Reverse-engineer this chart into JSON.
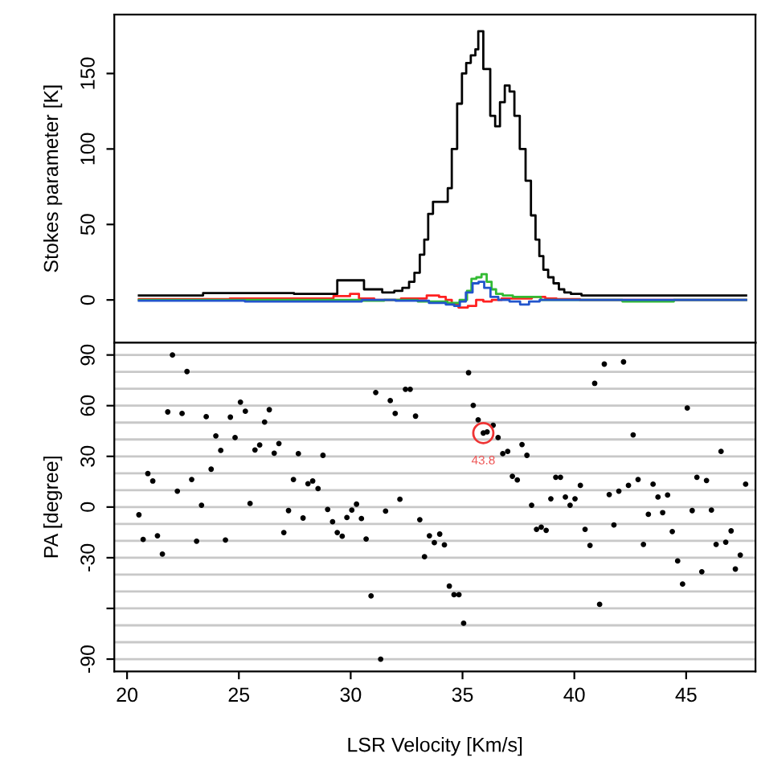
{
  "chart_data": [
    {
      "type": "step",
      "ylabel": "Stokes parameter [K]",
      "xlim": [
        19.43,
        48.1
      ],
      "ylim": [
        -28.3,
        189
      ],
      "yticks": [
        0,
        50,
        100,
        150
      ],
      "tick_labels": "y",
      "grid": false,
      "legend": false,
      "series": [
        {
          "color": "#000000",
          "x": [
            20.53,
            26.27,
            28.66,
            30.14,
            31.05,
            31.77,
            32.13,
            32.49,
            32.73,
            32.97,
            33.21,
            33.37,
            33.56,
            33.8,
            34.28,
            34.4,
            34.64,
            34.88,
            35.07,
            35.26,
            35.48,
            35.67,
            35.74,
            36.12,
            36.36,
            36.56,
            36.79,
            36.99,
            37.22,
            37.42,
            37.7,
            37.94,
            38.18,
            38.35,
            38.52,
            38.71,
            38.95,
            39.19,
            39.43,
            39.67,
            40.02,
            40.62,
            47.68
          ],
          "values": [
            3,
            4.5,
            4,
            13,
            7,
            5,
            6,
            8,
            12,
            18,
            30,
            40,
            57,
            65,
            65,
            74,
            100,
            130,
            150,
            157,
            162,
            166,
            178,
            153,
            122,
            115,
            131,
            142,
            138,
            122,
            100,
            79,
            56,
            40,
            29,
            20,
            15,
            11,
            7,
            5,
            4,
            3,
            3
          ]
        },
        {
          "color": "#ff2020",
          "x": [
            20.53,
            28.66,
            29.8,
            30.14,
            30.6,
            31.5,
            33.0,
            33.8,
            34.1,
            34.4,
            34.64,
            35.0,
            35.48,
            35.74,
            36.12,
            36.5,
            37.0,
            37.7,
            38.5,
            38.9,
            39.5,
            41.0,
            47.68
          ],
          "values": [
            0.5,
            1,
            2.5,
            4,
            1,
            0,
            1,
            3,
            2,
            0,
            -3,
            -5,
            -4,
            0,
            -1,
            0,
            1,
            1,
            2,
            1,
            0.5,
            0,
            0
          ]
        },
        {
          "color": "#33bb33",
          "x": [
            20.53,
            30.0,
            31.0,
            32.0,
            34.0,
            34.64,
            35.1,
            35.3,
            35.5,
            35.74,
            35.96,
            36.2,
            36.4,
            36.6,
            37.0,
            37.5,
            38.3,
            38.7,
            40.0,
            44.3,
            44.6,
            47.68
          ],
          "values": [
            0,
            0,
            -0.5,
            0,
            -1,
            -2,
            0,
            6,
            14,
            15,
            17,
            12,
            7,
            4,
            3,
            2,
            2,
            0,
            0,
            -1,
            0,
            0
          ]
        },
        {
          "color": "#2255cc",
          "x": [
            20.53,
            30.0,
            31.0,
            33.0,
            34.0,
            34.5,
            34.76,
            35.0,
            35.3,
            35.6,
            35.84,
            36.1,
            36.4,
            36.8,
            37.4,
            37.75,
            38.2,
            38.7,
            47.68
          ],
          "values": [
            -0.5,
            -1,
            0,
            -0.5,
            -2,
            -3,
            -4,
            -1,
            5,
            11,
            12,
            8,
            2,
            0,
            -1,
            -3,
            -1,
            0,
            0
          ]
        }
      ]
    },
    {
      "type": "scatter",
      "xlabel": "LSR Velocity [Km/s]",
      "ylabel": "PA [degree]",
      "xlim": [
        19.43,
        48.1
      ],
      "ylim": [
        -97.3,
        97.3
      ],
      "xticks": [
        20,
        25,
        30,
        35,
        40,
        45
      ],
      "yticks": [
        -90,
        {
          "value": -60,
          "label": null
        },
        -30,
        0,
        30,
        60,
        90
      ],
      "grid": false,
      "legend": false,
      "marker": "circle",
      "ref_lines": [
        {
          "axis": "y",
          "value": -90,
          "color": "#c8c8c8"
        },
        {
          "axis": "y",
          "value": -80,
          "color": "#c8c8c8"
        },
        {
          "axis": "y",
          "value": -70,
          "color": "#c8c8c8"
        },
        {
          "axis": "y",
          "value": -60,
          "color": "#c8c8c8"
        },
        {
          "axis": "y",
          "value": -50,
          "color": "#c8c8c8"
        },
        {
          "axis": "y",
          "value": -40,
          "color": "#c8c8c8"
        },
        {
          "axis": "y",
          "value": -30,
          "color": "#c8c8c8"
        },
        {
          "axis": "y",
          "value": -20,
          "color": "#c8c8c8"
        },
        {
          "axis": "y",
          "value": -10,
          "color": "#c8c8c8"
        },
        {
          "axis": "y",
          "value": 0,
          "color": "#c8c8c8"
        },
        {
          "axis": "y",
          "value": 10,
          "color": "#c8c8c8"
        },
        {
          "axis": "y",
          "value": 20,
          "color": "#c8c8c8"
        },
        {
          "axis": "y",
          "value": 30,
          "color": "#c8c8c8"
        },
        {
          "axis": "y",
          "value": 40,
          "color": "#c8c8c8"
        },
        {
          "axis": "y",
          "value": 50,
          "color": "#c8c8c8"
        },
        {
          "axis": "y",
          "value": 60,
          "color": "#c8c8c8"
        },
        {
          "axis": "y",
          "value": 70,
          "color": "#c8c8c8"
        },
        {
          "axis": "y",
          "value": 80,
          "color": "#c8c8c8"
        },
        {
          "axis": "y",
          "value": 90,
          "color": "#c8c8c8"
        }
      ],
      "annotations": [
        {
          "text": "43.8",
          "x": 35.93,
          "y": 43.8
        }
      ],
      "series": [
        {
          "color": "#000000",
          "x": [
            20.53,
            20.72,
            20.93,
            21.15,
            21.36,
            21.58,
            21.82,
            22.03,
            22.25,
            22.46,
            22.68,
            22.89,
            23.11,
            23.33,
            23.54,
            23.76,
            23.97,
            24.19,
            24.4,
            24.62,
            24.83,
            25.07,
            25.29,
            25.5,
            25.72,
            25.93,
            26.15,
            26.36,
            26.58,
            26.79,
            27.01,
            27.22,
            27.44,
            27.66,
            27.87,
            28.09,
            28.3,
            28.54,
            28.76,
            28.97,
            29.19,
            29.4,
            29.62,
            29.83,
            30.05,
            30.26,
            30.48,
            30.69,
            30.91,
            31.12,
            31.34,
            31.56,
            31.77,
            31.99,
            32.2,
            32.45,
            32.66,
            32.9,
            33.09,
            33.3,
            33.52,
            33.74,
            33.98,
            34.19,
            34.41,
            34.62,
            34.84,
            35.05,
            35.27,
            35.48,
            35.7,
            35.93,
            36.1,
            36.37,
            36.59,
            36.8,
            37.02,
            37.23,
            37.45,
            37.66,
            37.88,
            38.09,
            38.31,
            38.52,
            38.74,
            38.95,
            39.17,
            39.38,
            39.6,
            39.81,
            40.03,
            40.27,
            40.48,
            40.7,
            40.91,
            41.13,
            41.34,
            41.56,
            41.77,
            41.99,
            42.2,
            42.42,
            42.63,
            42.85,
            43.09,
            43.31,
            43.52,
            43.74,
            43.95,
            44.17,
            44.38,
            44.62,
            44.84,
            45.05,
            45.27,
            45.48,
            45.7,
            45.91,
            46.13,
            46.34,
            46.56,
            46.77,
            47.01,
            47.2,
            47.42,
            47.66
          ],
          "values": [
            -4.6,
            -19.2,
            19.8,
            15.4,
            -17.0,
            -27.8,
            56.3,
            90,
            9.4,
            55.4,
            80.2,
            16.3,
            -20.2,
            1.1,
            53.5,
            22.4,
            42.1,
            33.5,
            -19.5,
            53.2,
            41.1,
            62.1,
            56.7,
            2.1,
            33.8,
            36.7,
            50.3,
            57.6,
            31.9,
            37.6,
            -15.1,
            -2.1,
            16.3,
            31.6,
            -6.5,
            13.8,
            15.4,
            10.9,
            30.6,
            -1.4,
            -8.7,
            -15.1,
            -17.3,
            -6.2,
            -1.8,
            1.7,
            -6.8,
            -18.9,
            -52.6,
            67.8,
            -90,
            -2.4,
            63.0,
            55.4,
            4.6,
            69.7,
            69.7,
            53.8,
            -7.5,
            -29.4,
            -17.0,
            -21.1,
            -16.0,
            -22.4,
            -46.8,
            -51.9,
            -51.9,
            -68.8,
            79.5,
            60.2,
            51.6,
            43.8,
            44.5,
            48.4,
            41.1,
            31.6,
            32.9,
            18.2,
            16.0,
            37.0,
            30.6,
            1.1,
            -13.2,
            -11.9,
            -13.8,
            4.9,
            17.6,
            17.6,
            5.9,
            1.1,
            4.9,
            12.8,
            -13.2,
            -22.7,
            73.2,
            -57.6,
            84.6,
            7.4,
            -10.6,
            9.4,
            85.9,
            12.8,
            42.7,
            16.3,
            -22.1,
            -4.3,
            13.5,
            5.9,
            -3.3,
            7.1,
            -14.5,
            -31.9,
            -45.6,
            58.6,
            -2.1,
            17.6,
            -38.3,
            15.7,
            -1.8,
            -22.1,
            32.9,
            -20.8,
            -14.1,
            -36.7,
            -28.4,
            13.5
          ]
        }
      ]
    }
  ]
}
